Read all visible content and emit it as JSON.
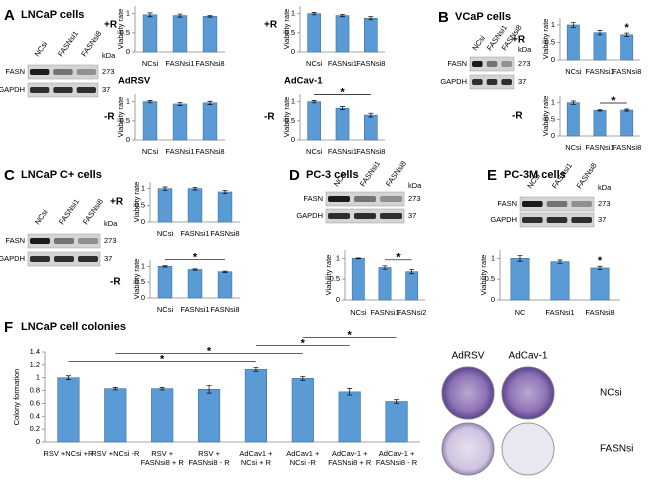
{
  "panels": [
    {
      "letter": "A",
      "title": "LNCaP cells",
      "blot": {
        "lanes": [
          "NCsi",
          "FASNsi1",
          "FASNsi8"
        ],
        "kda_label": "kDa",
        "rows": [
          {
            "protein": "FASN",
            "kda": 273
          },
          {
            "protein": "GAPDH",
            "kda": 37
          }
        ]
      }
    },
    {
      "letter": "B",
      "title": "VCaP cells",
      "blot": {
        "lanes": [
          "NCsi",
          "FASNsi1",
          "FASNsi8"
        ],
        "kda_label": "kDa",
        "rows": [
          {
            "protein": "FASN",
            "kda": 273
          },
          {
            "protein": "GAPDH",
            "kda": 37
          }
        ]
      }
    },
    {
      "letter": "C",
      "title": "LNCaP C+ cells",
      "blot": {
        "lanes": [
          "NCsi",
          "FASNsi1",
          "FASNsi8"
        ],
        "kda_label": "kDa",
        "rows": [
          {
            "protein": "FASN",
            "kda": 273
          },
          {
            "protein": "GAPDH",
            "kda": 37
          }
        ]
      }
    },
    {
      "letter": "D",
      "title": "PC-3 cells",
      "blot": {
        "lanes": [
          "NCsi",
          "FASNsi1",
          "FASNsi8"
        ],
        "kda_label": "kDa",
        "rows": [
          {
            "protein": "FASN",
            "kda": 273
          },
          {
            "protein": "GAPDH",
            "kda": 37
          }
        ]
      }
    },
    {
      "letter": "E",
      "title": "PC-3M cells",
      "blot": {
        "lanes": [
          "NCsi",
          "FASNsi1",
          "FASNsi8"
        ],
        "kda_label": "kDa",
        "rows": [
          {
            "protein": "FASN",
            "kda": 273
          },
          {
            "protein": "GAPDH",
            "kda": 37
          }
        ]
      }
    },
    {
      "letter": "F",
      "title": "LNCaP cell colonies",
      "colonies": {
        "columns": [
          "AdRSV",
          "AdCav-1"
        ],
        "rows": [
          "NCsi",
          "FASNsi"
        ]
      }
    }
  ],
  "chart_data": [
    {
      "type": "bar",
      "side_label": "+R",
      "ylabel": "Viability rate",
      "categories": [
        "NCsi",
        "FASNsi1",
        "FASNsi8"
      ],
      "values": [
        0.97,
        0.95,
        0.93
      ],
      "errors": [
        0.05,
        0.04,
        0.02
      ],
      "ylim": [
        0,
        1.2
      ],
      "yticks": [
        0,
        0.5,
        1
      ],
      "color": "#5b9bd5"
    },
    {
      "type": "bar",
      "side_label": "+R",
      "ylabel": "Viability rate",
      "categories": [
        "NCsi",
        "FASNsi1",
        "FASNsi8"
      ],
      "values": [
        1.0,
        0.95,
        0.88
      ],
      "errors": [
        0.03,
        0.03,
        0.04
      ],
      "ylim": [
        0,
        1.2
      ],
      "yticks": [
        0,
        0.5,
        1
      ],
      "color": "#5b9bd5"
    },
    {
      "type": "bar",
      "title": "AdRSV",
      "side_label": "-R",
      "ylabel": "Viability rate",
      "categories": [
        "NCsi",
        "FASNsi1",
        "FASNsi8"
      ],
      "values": [
        1.0,
        0.94,
        0.97
      ],
      "errors": [
        0.03,
        0.04,
        0.04
      ],
      "ylim": [
        0,
        1.2
      ],
      "yticks": [
        0,
        0.5,
        1
      ],
      "color": "#5b9bd5"
    },
    {
      "type": "bar",
      "title": "AdCav-1",
      "side_label": "-R",
      "ylabel": "Viability rate",
      "categories": [
        "NCsi",
        "FASNsi1",
        "FASNsi8"
      ],
      "values": [
        1.0,
        0.83,
        0.65
      ],
      "errors": [
        0.03,
        0.04,
        0.05
      ],
      "ylim": [
        0,
        1.2
      ],
      "yticks": [
        0,
        0.5,
        1
      ],
      "color": "#5b9bd5",
      "brackets": [
        {
          "label": "*",
          "between": [
            0,
            2
          ]
        }
      ]
    },
    {
      "type": "bar",
      "side_label": "+R",
      "ylabel": "Viability rate",
      "categories": [
        "NCsi",
        "FASNsi1",
        "FASNsi8"
      ],
      "values": [
        1.0,
        0.78,
        0.72
      ],
      "errors": [
        0.07,
        0.06,
        0.05
      ],
      "ylim": [
        0,
        1.2
      ],
      "yticks": [
        0,
        0.5,
        1
      ],
      "color": "#5b9bd5",
      "stars": [
        {
          "label": "*",
          "over": 2
        }
      ]
    },
    {
      "type": "bar",
      "side_label": "-R",
      "ylabel": "Viability rate",
      "categories": [
        "NCsi",
        "FASNsi1",
        "FASNsi8"
      ],
      "values": [
        1.0,
        0.77,
        0.78
      ],
      "errors": [
        0.05,
        0.02,
        0.03
      ],
      "ylim": [
        0,
        1.2
      ],
      "yticks": [
        0,
        0.5,
        1
      ],
      "color": "#5b9bd5",
      "brackets": [
        {
          "label": "*",
          "between": [
            1,
            2
          ]
        }
      ]
    },
    {
      "type": "bar",
      "side_label": "+R",
      "ylabel": "Viability rate",
      "categories": [
        "NCsi",
        "FASNsi1",
        "FASNsi8"
      ],
      "values": [
        1.0,
        1.0,
        0.9
      ],
      "errors": [
        0.05,
        0.04,
        0.05
      ],
      "ylim": [
        0,
        1.2
      ],
      "yticks": [
        0,
        0.5,
        1
      ],
      "color": "#5b9bd5"
    },
    {
      "type": "bar",
      "side_label": "-R",
      "ylabel": "Viability rate",
      "categories": [
        "NCsi",
        "FASNsi1",
        "FASNsi8"
      ],
      "values": [
        1.0,
        0.9,
        0.83
      ],
      "errors": [
        0.02,
        0.02,
        0.02
      ],
      "ylim": [
        0,
        1.2
      ],
      "yticks": [
        0,
        0.5,
        1
      ],
      "color": "#5b9bd5",
      "brackets": [
        {
          "label": "*",
          "between": [
            0,
            2
          ]
        }
      ]
    },
    {
      "type": "bar",
      "ylabel": "Viability rate",
      "categories": [
        "NCsi",
        "FASNsi1",
        "FASNsi2"
      ],
      "values": [
        1.0,
        0.78,
        0.68
      ],
      "errors": [
        0.01,
        0.04,
        0.05
      ],
      "ylim": [
        0,
        1.2
      ],
      "yticks": [
        0,
        0.5,
        1
      ],
      "color": "#5b9bd5",
      "brackets": [
        {
          "label": "*",
          "between": [
            1,
            2
          ]
        }
      ]
    },
    {
      "type": "bar",
      "ylabel": "Viability rate",
      "categories": [
        "NC",
        "FASNsi1",
        "FASNsi8"
      ],
      "values": [
        1.0,
        0.92,
        0.77
      ],
      "errors": [
        0.07,
        0.04,
        0.04
      ],
      "ylim": [
        0,
        1.2
      ],
      "yticks": [
        0,
        0.5,
        1
      ],
      "color": "#5b9bd5",
      "stars": [
        {
          "label": "*",
          "over": 2
        }
      ]
    },
    {
      "type": "bar",
      "ylabel": "Colony formation",
      "categories": [
        [
          "RSV +NCsi +R"
        ],
        [
          "RSV +NCsi -R"
        ],
        [
          "RSV +",
          "FASNsi8 + R"
        ],
        [
          "RSV +",
          "FASNsi8 - R"
        ],
        [
          "AdCav1 +",
          "NCsi + R"
        ],
        [
          "AdCav1 +",
          "NCsi -R"
        ],
        [
          "AdCav-1 +",
          "FASNsi8 + R"
        ],
        [
          "AdCav-1 +",
          "FASNsi8 - R"
        ]
      ],
      "values": [
        1.0,
        0.83,
        0.83,
        0.82,
        1.13,
        0.99,
        0.78,
        0.63
      ],
      "errors": [
        0.03,
        0.02,
        0.02,
        0.06,
        0.03,
        0.03,
        0.05,
        0.03
      ],
      "ylim": [
        0,
        1.4
      ],
      "yticks": [
        0,
        0.2,
        0.4,
        0.6,
        0.8,
        1,
        1.2,
        1.4
      ],
      "color": "#5b9bd5",
      "brackets": [
        {
          "label": "*",
          "between": [
            0,
            4
          ]
        },
        {
          "label": "*",
          "between": [
            1,
            5
          ]
        },
        {
          "label": "*",
          "between": [
            4,
            6
          ]
        },
        {
          "label": "*",
          "between": [
            5,
            7
          ]
        }
      ]
    }
  ]
}
